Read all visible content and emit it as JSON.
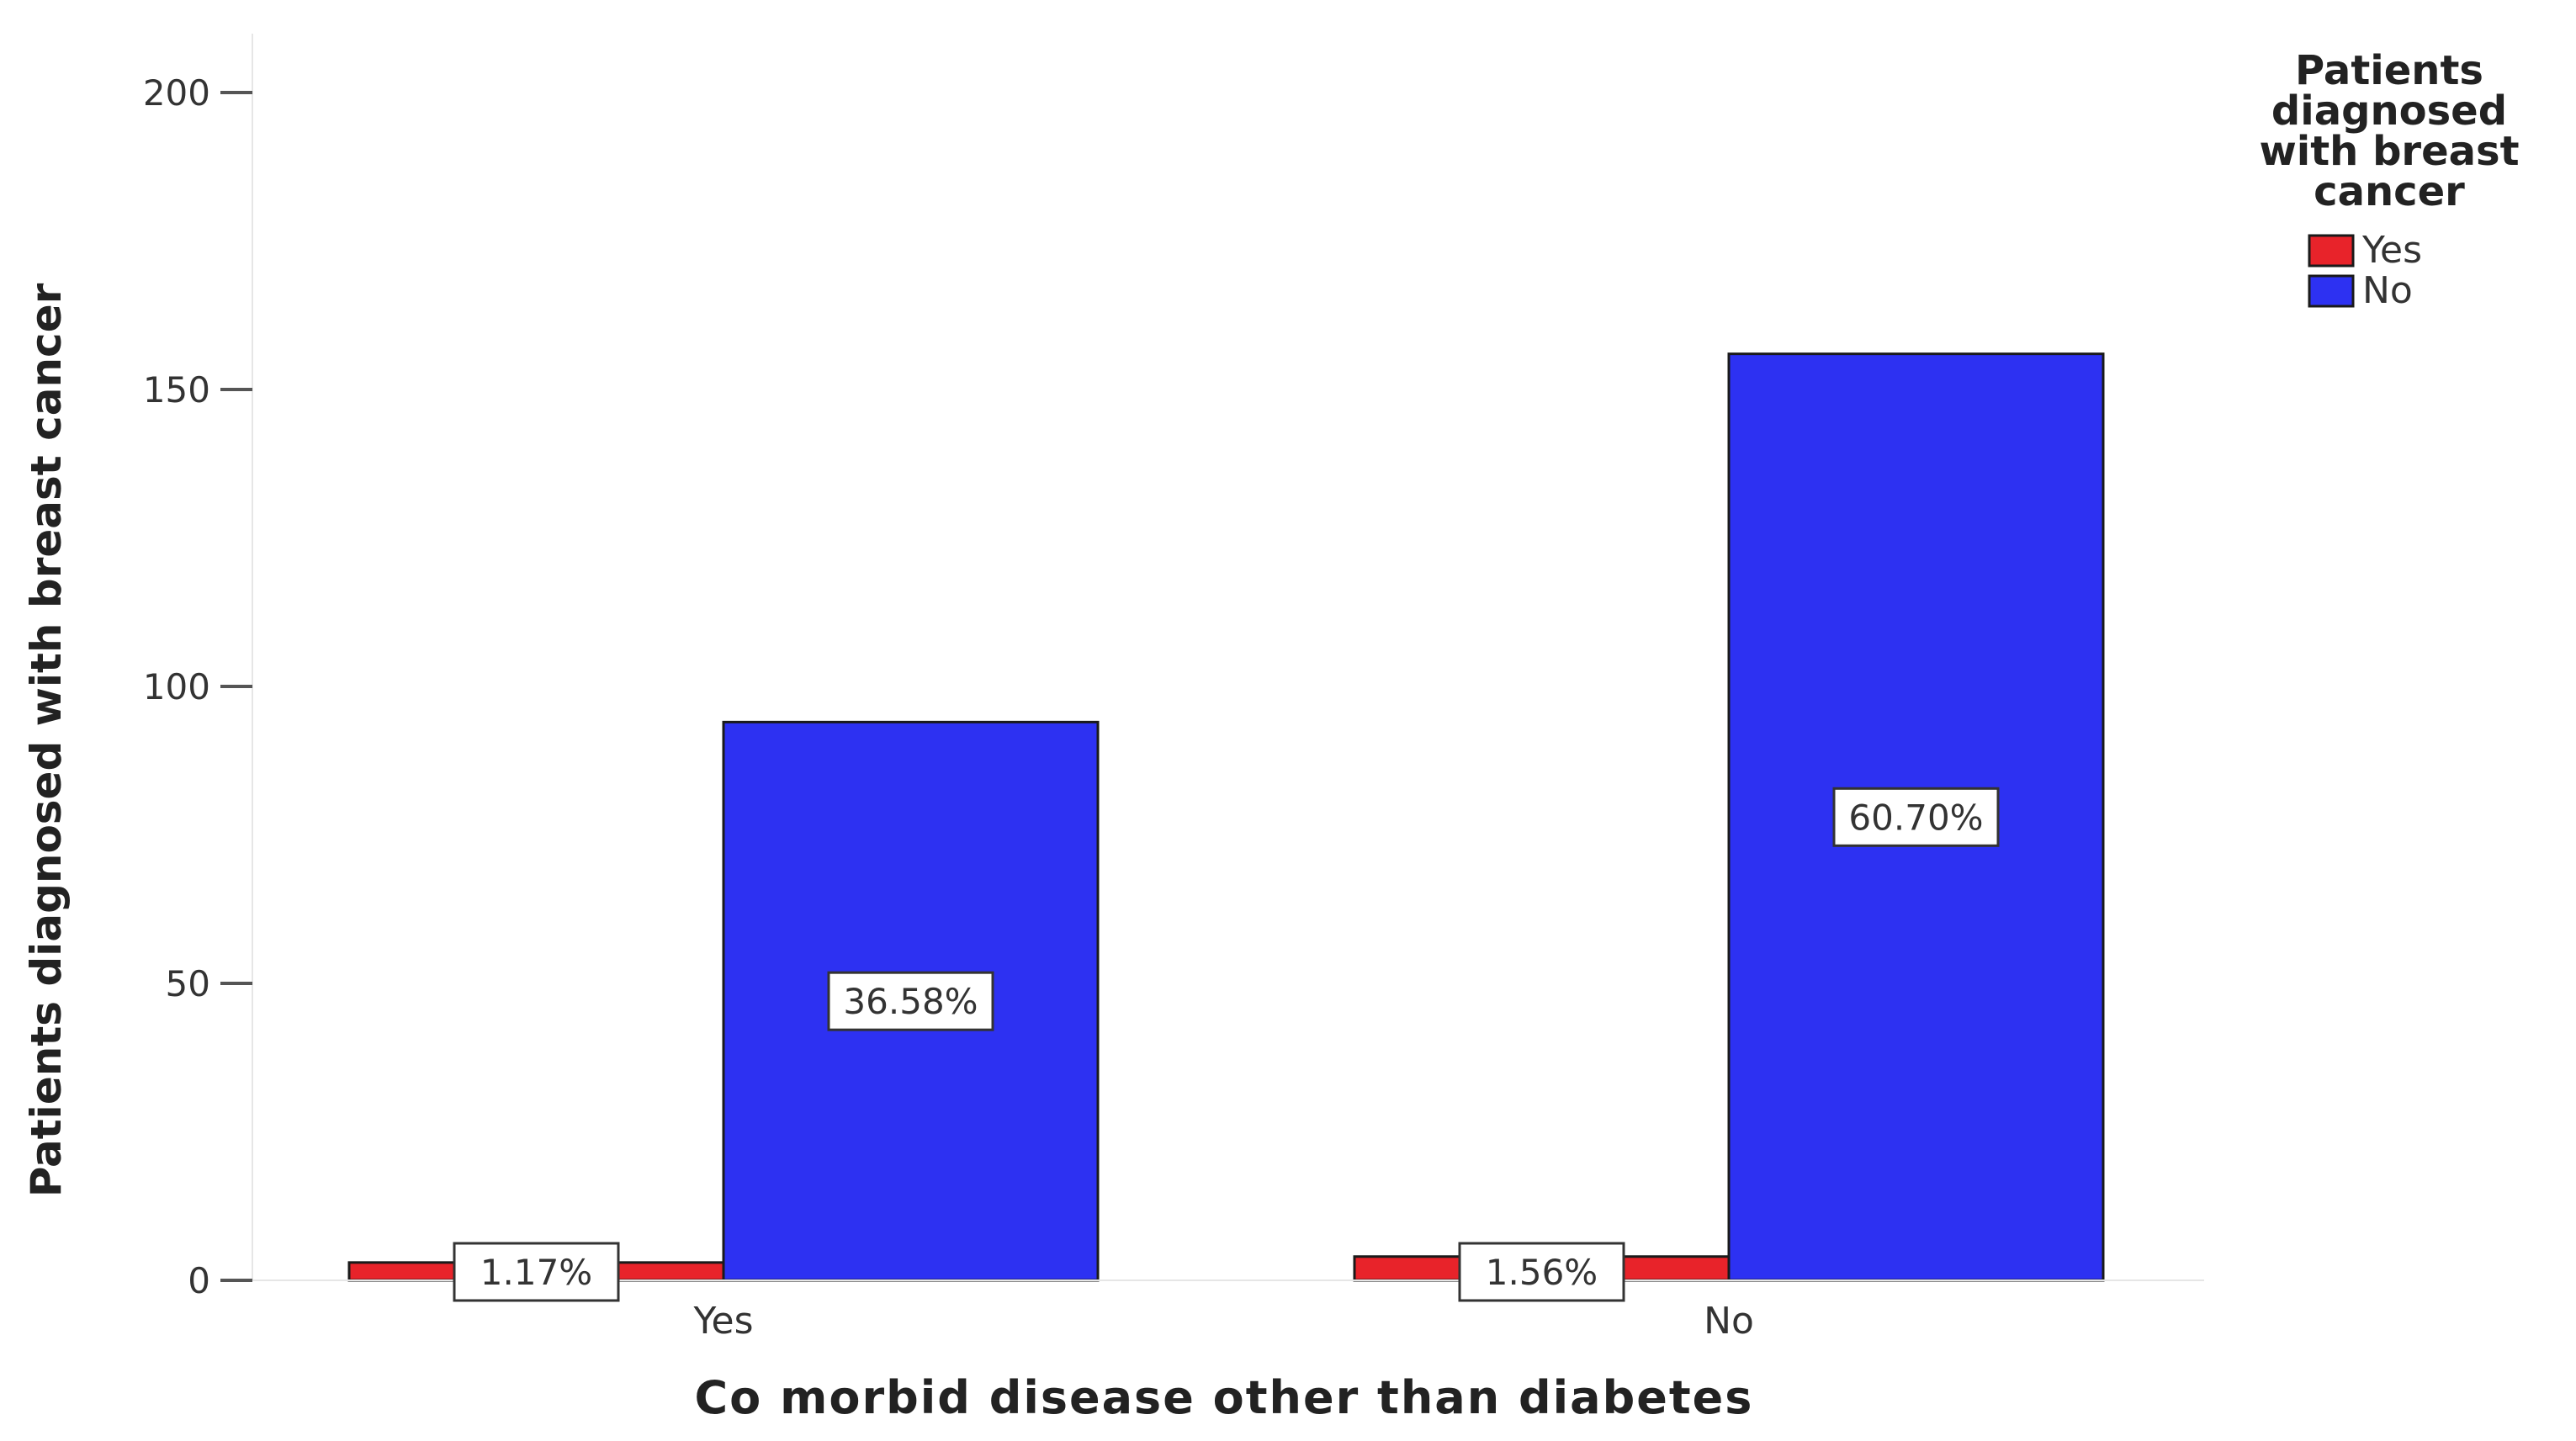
{
  "chart_data": {
    "type": "bar",
    "title": "",
    "xlabel": "Co morbid disease other than diabetes",
    "ylabel": "Patients diagnosed with breast cancer",
    "categories": [
      "Yes",
      "No"
    ],
    "ylim": [
      0,
      200
    ],
    "yticks": [
      "0",
      "50",
      "100",
      "150",
      "200"
    ],
    "grid": false,
    "legend": {
      "title_lines": [
        "Patients",
        "diagnosed",
        "with breast",
        "cancer"
      ],
      "placement": "top-right"
    },
    "series": [
      {
        "name": "Yes",
        "color": "#e8232a",
        "values": [
          3,
          4
        ],
        "labels": [
          "1.17%",
          "1.56%"
        ]
      },
      {
        "name": "No",
        "color": "#2d31f2",
        "values": [
          94,
          156
        ],
        "labels": [
          "36.58%",
          "60.70%"
        ]
      }
    ]
  }
}
